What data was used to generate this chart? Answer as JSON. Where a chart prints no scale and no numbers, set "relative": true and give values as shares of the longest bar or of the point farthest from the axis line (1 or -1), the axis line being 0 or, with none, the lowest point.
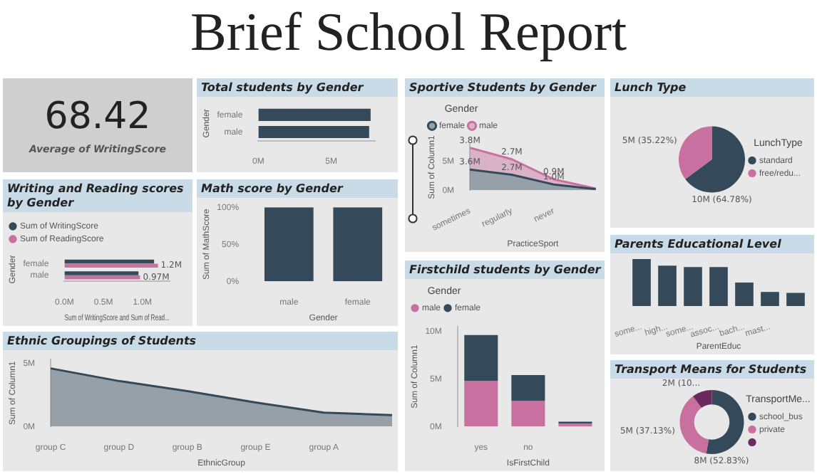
{
  "chart_data": [
    {
      "type": "other",
      "title": "Brief School Report"
    },
    {
      "type": "other",
      "annotations": [
        "68.42",
        "Average of WritingScore"
      ]
    },
    {
      "type": "bar",
      "title": "Total students by Gender",
      "orientation": "horizontal",
      "categories": [
        "female",
        "male"
      ],
      "values": [
        7.7,
        7.6
      ],
      "color": "#344a5a",
      "ylabel": "Gender",
      "xlim": [
        0,
        8
      ],
      "xticks": [
        {
          "value": 0,
          "label": "0M"
        },
        {
          "value": 5,
          "label": "5M"
        }
      ]
    },
    {
      "type": "bar",
      "title": "Writing and Reading scores by Gender",
      "orientation": "horizontal",
      "categories": [
        "female",
        "male"
      ],
      "series": [
        {
          "name": "Sum of WritingScore",
          "color": "#344a5a",
          "values": [
            1.15,
            0.95
          ]
        },
        {
          "name": "Sum of ReadingScore",
          "color": "#c8709f",
          "values": [
            1.2,
            0.97
          ],
          "value_labels": [
            "1.2M",
            "0.97M"
          ]
        }
      ],
      "xlabel": "Sum of WritingScore and Sum of Read...",
      "ylabel": "Gender",
      "xlim": [
        0,
        1.35
      ],
      "xticks": [
        {
          "value": 0,
          "label": "0.0M"
        },
        {
          "value": 0.5,
          "label": "0.5M"
        },
        {
          "value": 1,
          "label": "1.0M"
        }
      ],
      "legend": "top left"
    },
    {
      "type": "bar",
      "title": "Math score by Gender",
      "categories": [
        "male",
        "female"
      ],
      "values": [
        100,
        100
      ],
      "color": "#344a5a",
      "xlabel": "Gender",
      "ylabel": "Sum of MathScore",
      "ylim": [
        0,
        100
      ],
      "yticks": [
        {
          "value": 0,
          "label": "0%"
        },
        {
          "value": 50,
          "label": "50%"
        },
        {
          "value": 100,
          "label": "100%"
        }
      ]
    },
    {
      "type": "area",
      "title": "Sportive Students by Gender",
      "stacked": true,
      "categories": [
        "sometimes",
        "regularly",
        "never",
        null
      ],
      "series": [
        {
          "name": "female",
          "color": "#344a5a",
          "values": [
            3.6,
            2.7,
            1.0,
            0.2
          ],
          "value_labels": [
            "3.6M",
            "2.7M",
            "1.0M",
            null
          ]
        },
        {
          "name": "male",
          "color": "#c8709f",
          "values": [
            3.8,
            2.7,
            0.9,
            0.1
          ],
          "value_labels": [
            "3.8M",
            "2.7M",
            "0.9M",
            null
          ]
        }
      ],
      "xlabel": "PracticeSport",
      "ylabel": "Sum of Column1",
      "legend_title": "Gender",
      "legend": "top left",
      "ylim": [
        0,
        8
      ],
      "yticks": [
        {
          "value": 0,
          "label": "0M"
        },
        {
          "value": 5,
          "label": "5M"
        }
      ]
    },
    {
      "type": "pie",
      "title": "Lunch Type",
      "categories": [
        "standard",
        "free/redu..."
      ],
      "values": [
        64.78,
        35.22
      ],
      "colors": [
        "#344a5a",
        "#c8709f"
      ],
      "value_labels": [
        "10M (64.78%)",
        "5M (35.22%)"
      ],
      "legend_title": "LunchType",
      "legend": "right"
    },
    {
      "type": "bar",
      "title": "Parents Educational Level",
      "relative": true,
      "categories": [
        "some...",
        "high...",
        "some...",
        "assoc...",
        "bach...",
        "mast...",
        null
      ],
      "values": [
        1,
        0.86,
        0.83,
        0.83,
        0.5,
        0.3,
        0.28
      ],
      "color": "#344a5a",
      "xlabel": "ParentEduc"
    },
    {
      "type": "area",
      "title": "Ethnic Groupings of Students",
      "categories": [
        "group C",
        "group D",
        "group B",
        "group E",
        "group A",
        null
      ],
      "values": [
        4.6,
        3.6,
        2.8,
        1.9,
        1.1,
        0.9
      ],
      "color": "#344a5a",
      "xlabel": "EthnicGroup",
      "ylabel": "Sum of Column1",
      "ylim": [
        0,
        5.3
      ],
      "yticks": [
        {
          "value": 0,
          "label": "0M"
        },
        {
          "value": 5,
          "label": "5M"
        }
      ]
    },
    {
      "type": "bar",
      "title": "Firstchild students by Gender",
      "stacked": true,
      "categories": [
        "yes",
        "no",
        null
      ],
      "series": [
        {
          "name": "male",
          "color": "#c8709f",
          "values": [
            4.8,
            2.7,
            0.3
          ]
        },
        {
          "name": "female",
          "color": "#344a5a",
          "values": [
            4.8,
            2.7,
            0.2
          ]
        }
      ],
      "xlabel": "IsFirstChild",
      "ylabel": "Sum of Column1",
      "legend_title": "Gender",
      "legend": "top left",
      "ylim": [
        0,
        10.5
      ],
      "yticks": [
        {
          "value": 0,
          "label": "0M"
        },
        {
          "value": 5,
          "label": "5M"
        },
        {
          "value": 10,
          "label": "10M"
        }
      ]
    },
    {
      "type": "donut",
      "title": "Transport Means for Students",
      "categories": [
        "school_bus",
        "private",
        null
      ],
      "values": [
        52.83,
        37.13,
        10.04
      ],
      "colors": [
        "#344a5a",
        "#c8709f",
        "#6b2a5e"
      ],
      "value_labels": [
        "8M (52.83%)",
        "5M (37.13%)",
        "2M (10..."
      ],
      "legend_title": "TransportMe...",
      "legend": "right"
    }
  ]
}
